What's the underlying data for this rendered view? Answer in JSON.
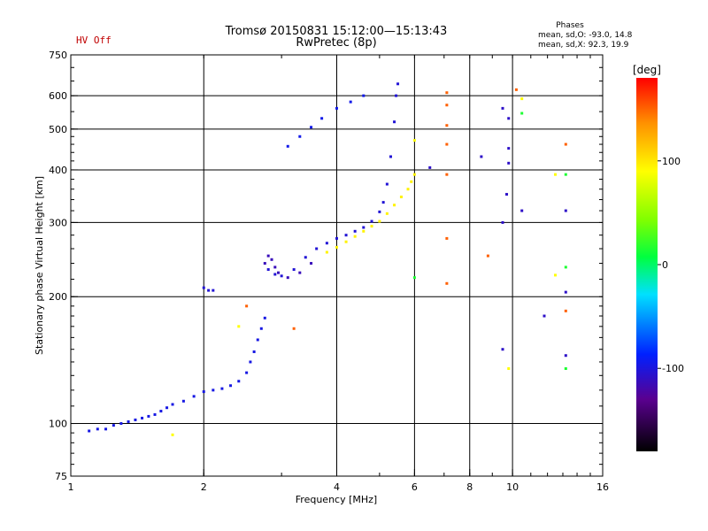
{
  "header": {
    "hv_status": "HV Off",
    "title_line1": "Tromsø 20150831 15:12:00—15:13:43",
    "title_line2": "RwPretec (8p)",
    "phases_title": "Phases",
    "phases_o": "mean, sd,O: -93.0, 14.8",
    "phases_x": "mean, sd,X:  92.3, 19.9"
  },
  "colorbar": {
    "label": "[deg]",
    "ticks": [
      {
        "value": 100,
        "label": "100"
      },
      {
        "value": 0,
        "label": "0"
      },
      {
        "value": -100,
        "label": "-100"
      }
    ],
    "range": [
      -180,
      180
    ]
  },
  "chart_data": {
    "type": "scatter",
    "title": "Tromsø 20150831 15:12:00—15:13:43",
    "subtitle": "RwPretec (8p)",
    "xlabel": "Frequency [MHz]",
    "ylabel": "Stationary phase Virtual Height [km]",
    "xscale": "log",
    "yscale": "log",
    "xlim": [
      1,
      16
    ],
    "ylim": [
      75,
      750
    ],
    "x_ticks": [
      {
        "value": 1,
        "label": "1"
      },
      {
        "value": 2,
        "label": "2"
      },
      {
        "value": 4,
        "label": "4"
      },
      {
        "value": 6,
        "label": "6"
      },
      {
        "value": 8,
        "label": "8"
      },
      {
        "value": 10,
        "label": "10"
      },
      {
        "value": 16,
        "label": "16"
      }
    ],
    "x_grid": [
      2,
      4,
      6,
      8,
      10
    ],
    "y_ticks": [
      {
        "value": 75,
        "label": "75"
      },
      {
        "value": 100,
        "label": "100"
      },
      {
        "value": 200,
        "label": "200"
      },
      {
        "value": 300,
        "label": "300"
      },
      {
        "value": 400,
        "label": "400"
      },
      {
        "value": 500,
        "label": "500"
      },
      {
        "value": 600,
        "label": "600"
      },
      {
        "value": 750,
        "label": "750"
      }
    ],
    "y_grid": [
      100,
      200,
      300,
      400,
      500,
      600
    ],
    "color_scale": "phase in degrees, -180 (black) to 180 (red)",
    "series": [
      {
        "name": "O-mode low trace",
        "phase": -100,
        "points": [
          [
            1.1,
            96
          ],
          [
            1.15,
            97
          ],
          [
            1.2,
            97
          ],
          [
            1.25,
            99
          ],
          [
            1.3,
            100
          ],
          [
            1.35,
            101
          ],
          [
            1.4,
            102
          ],
          [
            1.45,
            103
          ],
          [
            1.5,
            104
          ],
          [
            1.55,
            105
          ],
          [
            1.6,
            107
          ],
          [
            1.65,
            109
          ],
          [
            1.7,
            111
          ],
          [
            1.8,
            113
          ],
          [
            1.9,
            116
          ],
          [
            2.0,
            119
          ],
          [
            2.1,
            120
          ],
          [
            2.2,
            121
          ],
          [
            2.3,
            123
          ],
          [
            2.4,
            126
          ],
          [
            2.5,
            132
          ],
          [
            2.55,
            140
          ],
          [
            2.6,
            148
          ],
          [
            2.65,
            158
          ],
          [
            2.7,
            168
          ],
          [
            2.75,
            178
          ]
        ]
      },
      {
        "name": "O-mode F trace",
        "phase": -105,
        "points": [
          [
            2.0,
            210
          ],
          [
            2.05,
            207
          ],
          [
            2.1,
            207
          ],
          [
            2.8,
            232
          ],
          [
            2.9,
            226
          ],
          [
            3.0,
            224
          ],
          [
            3.2,
            232
          ],
          [
            3.4,
            248
          ],
          [
            3.6,
            260
          ],
          [
            3.8,
            268
          ],
          [
            4.0,
            275
          ],
          [
            4.2,
            280
          ],
          [
            4.4,
            286
          ],
          [
            4.6,
            292
          ],
          [
            4.8,
            302
          ],
          [
            5.0,
            318
          ],
          [
            5.1,
            335
          ],
          [
            5.2,
            370
          ],
          [
            5.3,
            430
          ],
          [
            5.4,
            520
          ],
          [
            5.45,
            600
          ],
          [
            5.5,
            640
          ]
        ]
      },
      {
        "name": "O-mode spread cluster",
        "phase": -115,
        "points": [
          [
            2.75,
            240
          ],
          [
            2.8,
            250
          ],
          [
            2.85,
            245
          ],
          [
            2.9,
            235
          ],
          [
            2.95,
            228
          ],
          [
            3.1,
            222
          ],
          [
            3.3,
            228
          ],
          [
            3.5,
            240
          ]
        ]
      },
      {
        "name": "Upper O trace",
        "phase": -98,
        "points": [
          [
            3.1,
            455
          ],
          [
            3.3,
            480
          ],
          [
            3.5,
            505
          ],
          [
            3.7,
            530
          ],
          [
            4.0,
            560
          ],
          [
            4.3,
            580
          ],
          [
            4.6,
            600
          ]
        ]
      },
      {
        "name": "X-mode trace",
        "phase": 95,
        "points": [
          [
            3.8,
            255
          ],
          [
            4.0,
            262
          ],
          [
            4.2,
            270
          ],
          [
            4.4,
            278
          ],
          [
            4.6,
            286
          ],
          [
            4.8,
            294
          ],
          [
            5.0,
            302
          ],
          [
            5.2,
            315
          ],
          [
            5.4,
            330
          ],
          [
            5.6,
            345
          ],
          [
            5.8,
            360
          ],
          [
            5.9,
            375
          ],
          [
            6.0,
            390
          ]
        ]
      },
      {
        "name": "Sparse O echoes",
        "phase": -110,
        "points": [
          [
            9.5,
            150
          ],
          [
            9.5,
            300
          ],
          [
            9.7,
            350
          ],
          [
            9.8,
            415
          ],
          [
            9.8,
            450
          ],
          [
            10.5,
            320
          ],
          [
            11.8,
            180
          ],
          [
            13.2,
            320
          ],
          [
            13.2,
            205
          ],
          [
            13.2,
            145
          ],
          [
            8.5,
            430
          ],
          [
            6.5,
            405
          ],
          [
            9.5,
            560
          ],
          [
            9.8,
            530
          ]
        ]
      },
      {
        "name": "Sparse X echoes",
        "phase": 150,
        "points": [
          [
            7.1,
            610
          ],
          [
            7.1,
            570
          ],
          [
            7.1,
            510
          ],
          [
            7.1,
            460
          ],
          [
            7.1,
            390
          ],
          [
            7.1,
            275
          ],
          [
            7.1,
            215
          ],
          [
            10.2,
            620
          ],
          [
            8.8,
            250
          ],
          [
            13.2,
            460
          ],
          [
            13.2,
            185
          ],
          [
            3.2,
            168
          ],
          [
            2.5,
            190
          ]
        ]
      },
      {
        "name": "Sparse yellow echoes",
        "phase": 90,
        "points": [
          [
            1.7,
            94
          ],
          [
            2.4,
            170
          ],
          [
            6.0,
            470
          ],
          [
            9.8,
            135
          ],
          [
            12.5,
            225
          ],
          [
            12.5,
            390
          ],
          [
            10.5,
            590
          ]
        ]
      },
      {
        "name": "Sparse green/cyan echoes",
        "phase": 10,
        "points": [
          [
            13.2,
            235
          ],
          [
            13.2,
            135
          ],
          [
            6.0,
            222
          ],
          [
            13.2,
            390
          ],
          [
            10.5,
            545
          ]
        ]
      }
    ]
  }
}
